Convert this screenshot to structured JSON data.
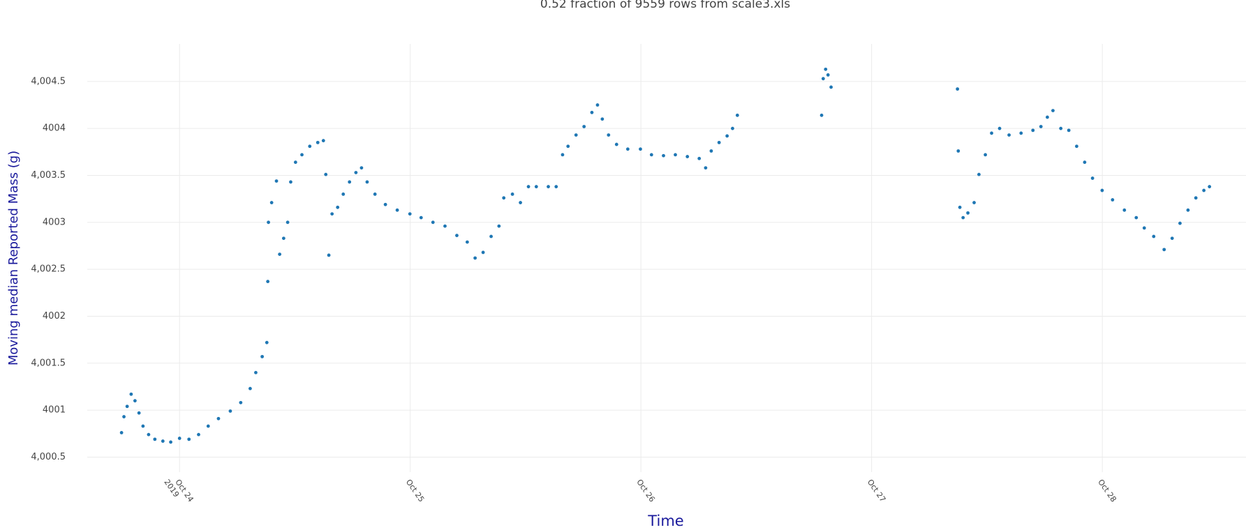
{
  "chart_data": {
    "type": "scatter",
    "title": "0.52 fraction of 9559 rows from scale3.xls",
    "x_label": "Time",
    "y_label": "Moving median Reported Mass (g)",
    "grid": true,
    "color": "#1f77b4",
    "xlim": [
      "2019-10-23 14:24",
      "2019-10-28 14:57"
    ],
    "xticks": [
      {
        "value": "2019-10-24 00:00",
        "label": "Oct 24\n2019"
      },
      {
        "value": "2019-10-25 00:00",
        "label": "Oct 25"
      },
      {
        "value": "2019-10-26 00:00",
        "label": "Oct 26"
      },
      {
        "value": "2019-10-27 00:00",
        "label": "Oct 27"
      },
      {
        "value": "2019-10-28 00:00",
        "label": "Oct 28"
      }
    ],
    "ylim": [
      4000.34,
      4004.9
    ],
    "yticks": [
      {
        "value": 4000.5,
        "label": "4,000.5"
      },
      4001,
      {
        "value": 4001.5,
        "label": "4,001.5"
      },
      4002,
      {
        "value": 4002.5,
        "label": "4,002.5"
      },
      4003,
      {
        "value": 4003.5,
        "label": "4,003.5"
      },
      4004,
      {
        "value": 4004.5,
        "label": "4,004.5"
      }
    ],
    "x": [
      "2019-10-23 17:58",
      "2019-10-23 18:13",
      "2019-10-23 18:33",
      "2019-10-23 18:58",
      "2019-10-23 19:22",
      "2019-10-23 19:47",
      "2019-10-23 20:12",
      "2019-10-23 20:47",
      "2019-10-23 21:26",
      "2019-10-23 22:16",
      "2019-10-23 23:05",
      "2019-10-24 00:00",
      "2019-10-24 00:59",
      "2019-10-24 01:59",
      "2019-10-24 02:59",
      "2019-10-24 04:03",
      "2019-10-24 05:17",
      "2019-10-24 06:22",
      "2019-10-24 07:21",
      "2019-10-24 07:56",
      "2019-10-24 08:36",
      "2019-10-24 09:05",
      "2019-10-24 09:11",
      "2019-10-24 09:15",
      "2019-10-24 09:35",
      "2019-10-24 10:05",
      "2019-10-24 10:25",
      "2019-10-24 10:50",
      "2019-10-24 11:15",
      "2019-10-24 11:34",
      "2019-10-24 12:04",
      "2019-10-24 12:44",
      "2019-10-24 13:33",
      "2019-10-24 14:23",
      "2019-10-24 14:58",
      "2019-10-24 15:13",
      "2019-10-24 15:32",
      "2019-10-24 15:52",
      "2019-10-24 16:27",
      "2019-10-24 17:02",
      "2019-10-24 17:41",
      "2019-10-24 18:21",
      "2019-10-24 18:56",
      "2019-10-24 19:31",
      "2019-10-24 20:20",
      "2019-10-24 21:25",
      "2019-10-24 22:39",
      "2019-10-24 23:58",
      "2019-10-25 01:08",
      "2019-10-25 02:22",
      "2019-10-25 03:37",
      "2019-10-25 04:51",
      "2019-10-25 05:56",
      "2019-10-25 06:45",
      "2019-10-25 07:35",
      "2019-10-25 08:25",
      "2019-10-25 09:14",
      "2019-10-25 09:44",
      "2019-10-25 10:38",
      "2019-10-25 11:28",
      "2019-10-25 12:18",
      "2019-10-25 13:07",
      "2019-10-25 14:22",
      "2019-10-25 15:11",
      "2019-10-25 15:51",
      "2019-10-25 16:25",
      "2019-10-25 17:15",
      "2019-10-25 18:05",
      "2019-10-25 18:54",
      "2019-10-25 19:29",
      "2019-10-25 19:59",
      "2019-10-25 20:38",
      "2019-10-25 21:28",
      "2019-10-25 22:38",
      "2019-10-25 23:57",
      "2019-10-26 01:06",
      "2019-10-26 02:21",
      "2019-10-26 03:35",
      "2019-10-26 04:50",
      "2019-10-26 06:04",
      "2019-10-26 06:44",
      "2019-10-26 07:19",
      "2019-10-26 08:08",
      "2019-10-26 08:58",
      "2019-10-26 09:32",
      "2019-10-26 10:02",
      "2019-10-26 18:48",
      "2019-10-26 18:58",
      "2019-10-26 19:13",
      "2019-10-26 19:28",
      "2019-10-26 19:47",
      "2019-10-27 08:56",
      "2019-10-27 09:01",
      "2019-10-27 09:11",
      "2019-10-27 09:31",
      "2019-10-27 10:01",
      "2019-10-27 10:40",
      "2019-10-27 11:10",
      "2019-10-27 11:50",
      "2019-10-27 12:29",
      "2019-10-27 13:19",
      "2019-10-27 14:18",
      "2019-10-27 15:33",
      "2019-10-27 16:47",
      "2019-10-27 17:37",
      "2019-10-27 18:17",
      "2019-10-27 18:52",
      "2019-10-27 19:41",
      "2019-10-27 20:31",
      "2019-10-27 21:20",
      "2019-10-27 22:10",
      "2019-10-27 22:59",
      "2019-10-27 23:59",
      "2019-10-28 01:04",
      "2019-10-28 02:18",
      "2019-10-28 03:32",
      "2019-10-28 04:22",
      "2019-10-28 05:21",
      "2019-10-28 06:26",
      "2019-10-28 07:16",
      "2019-10-28 08:05",
      "2019-10-28 08:55",
      "2019-10-28 09:44",
      "2019-10-28 10:34",
      "2019-10-28 11:09"
    ],
    "values": [
      4000.76,
      4000.93,
      4001.04,
      4001.17,
      4001.1,
      4000.97,
      4000.83,
      4000.74,
      4000.69,
      4000.67,
      4000.66,
      4000.7,
      4000.69,
      4000.74,
      4000.83,
      4000.91,
      4000.99,
      4001.08,
      4001.23,
      4001.4,
      4001.57,
      4001.72,
      4002.37,
      4003.0,
      4003.21,
      4003.44,
      4002.66,
      4002.83,
      4003.0,
      4003.43,
      4003.64,
      4003.72,
      4003.81,
      4003.85,
      4003.87,
      4003.51,
      4002.65,
      4003.09,
      4003.16,
      4003.3,
      4003.43,
      4003.53,
      4003.58,
      4003.43,
      4003.3,
      4003.19,
      4003.13,
      4003.09,
      4003.05,
      4003.0,
      4002.96,
      4002.86,
      4002.79,
      4002.62,
      4002.68,
      4002.85,
      4002.96,
      4003.26,
      4003.3,
      4003.21,
      4003.38,
      4003.38,
      4003.38,
      4003.38,
      4003.72,
      4003.81,
      4003.93,
      4004.02,
      4004.17,
      4004.25,
      4004.1,
      4003.93,
      4003.83,
      4003.78,
      4003.78,
      4003.72,
      4003.71,
      4003.72,
      4003.7,
      4003.68,
      4003.58,
      4003.76,
      4003.85,
      4003.92,
      4004.0,
      4004.14,
      4004.14,
      4004.53,
      4004.63,
      4004.57,
      4004.44,
      4004.42,
      4003.76,
      4003.16,
      4003.05,
      4003.1,
      4003.21,
      4003.51,
      4003.72,
      4003.95,
      4004.0,
      4003.93,
      4003.95,
      4003.98,
      4004.02,
      4004.12,
      4004.19,
      4004.0,
      4003.98,
      4003.81,
      4003.64,
      4003.47,
      4003.34,
      4003.24,
      4003.13,
      4003.05,
      4002.94,
      4002.85,
      4002.71,
      4002.83,
      4002.99,
      4003.13,
      4003.26,
      4003.34,
      4003.38
    ]
  }
}
